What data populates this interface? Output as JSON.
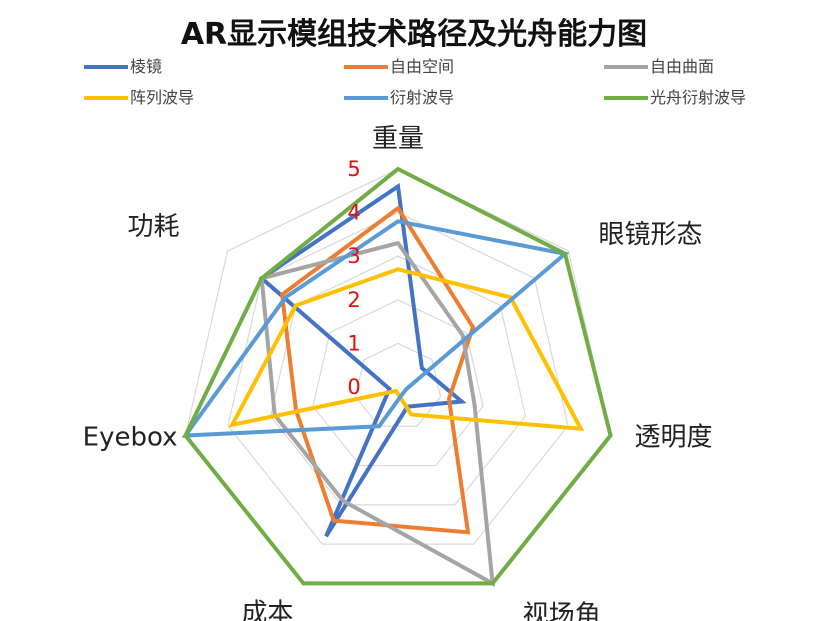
{
  "chart_data": {
    "type": "radar",
    "title": "AR显示模组技术路径及光舟能力图",
    "axes": [
      "重量",
      "眼镜形态",
      "透明度",
      "视场角",
      "成本",
      "Eyebox",
      "功耗"
    ],
    "ticks": [
      "0",
      "1",
      "2",
      "3",
      "4",
      "5"
    ],
    "range": [
      0,
      5
    ],
    "grid": true,
    "legend_position": "top",
    "series": [
      {
        "name": "棱镜",
        "color": "#4472C4",
        "values": [
          4.6,
          0.7,
          1.5,
          0.5,
          3.8,
          0.2,
          4.0
        ]
      },
      {
        "name": "自由空间",
        "color": "#ED7D31",
        "values": [
          4.1,
          2.2,
          1.2,
          3.7,
          3.4,
          2.4,
          3.4
        ]
      },
      {
        "name": "自由曲面",
        "color": "#A5A5A5",
        "values": [
          3.3,
          1.9,
          1.8,
          5.0,
          2.9,
          2.9,
          4.0
        ]
      },
      {
        "name": "阵列波导",
        "color": "#FFC000",
        "values": [
          2.7,
          3.3,
          4.3,
          0.7,
          0.1,
          3.9,
          3.0
        ]
      },
      {
        "name": "衍射波导",
        "color": "#5B9BD5",
        "values": [
          3.8,
          4.9,
          0.2,
          0.2,
          1.0,
          5.0,
          3.3
        ]
      },
      {
        "name": "光舟衍射波导",
        "color": "#70AD47",
        "values": [
          5.0,
          4.9,
          5.0,
          5.0,
          5.0,
          5.0,
          4.0
        ]
      }
    ]
  }
}
